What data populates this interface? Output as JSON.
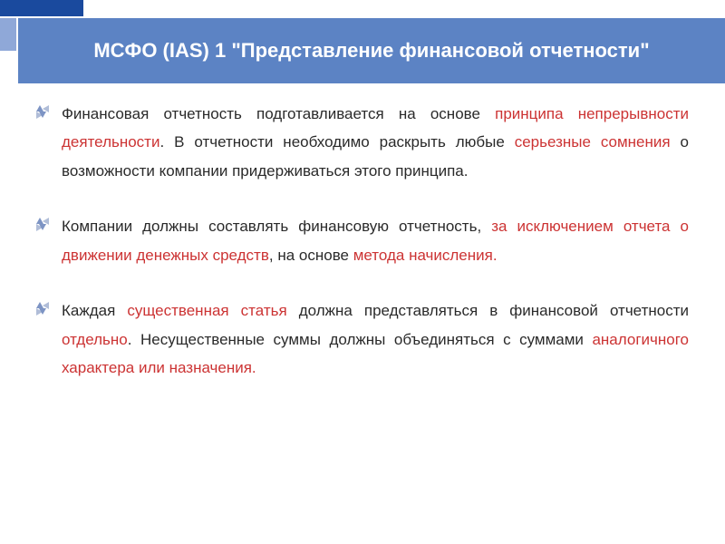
{
  "colors": {
    "header_accent_dark": "#1a4a9e",
    "header_accent_light": "#8fa8d8",
    "title_bg": "#5c83c4",
    "title_text": "#ffffff",
    "body_text": "#2a2a2a",
    "highlight": "#cc3333",
    "bullet_light": "#b0bdd8",
    "bullet_dark": "#7d94c4"
  },
  "typography": {
    "title_fontsize": 22,
    "body_fontsize": 17,
    "body_lineheight": 1.85,
    "font_family": "Arial"
  },
  "title": "МСФО (IAS) 1 \"Представление финансовой отчетности\"",
  "bullets": [
    {
      "segments": [
        {
          "t": "Финансовая отчетность подготавливается на основе ",
          "hl": false
        },
        {
          "t": "принципа непрерывности деятельности",
          "hl": true
        },
        {
          "t": ". В отчетности необходимо раскрыть любые ",
          "hl": false
        },
        {
          "t": "серьезные сомнения ",
          "hl": true
        },
        {
          "t": "о возможности компании придерживаться этого принципа.",
          "hl": false
        }
      ]
    },
    {
      "segments": [
        {
          "t": "Компании должны составлять финансовую отчетность, ",
          "hl": false
        },
        {
          "t": "за исключением отчета о движении денежных средств",
          "hl": true
        },
        {
          "t": ", на основе ",
          "hl": false
        },
        {
          "t": "метода начисления.",
          "hl": true
        }
      ]
    },
    {
      "segments": [
        {
          "t": "Каждая ",
          "hl": false
        },
        {
          "t": "существенная статья ",
          "hl": true
        },
        {
          "t": "должна представляться в финансовой отчетности ",
          "hl": false
        },
        {
          "t": "отдельно",
          "hl": true
        },
        {
          "t": ". Несущественные суммы должны объединяться с суммами ",
          "hl": false
        },
        {
          "t": "аналогичного характера или назначения.",
          "hl": true
        }
      ]
    }
  ]
}
